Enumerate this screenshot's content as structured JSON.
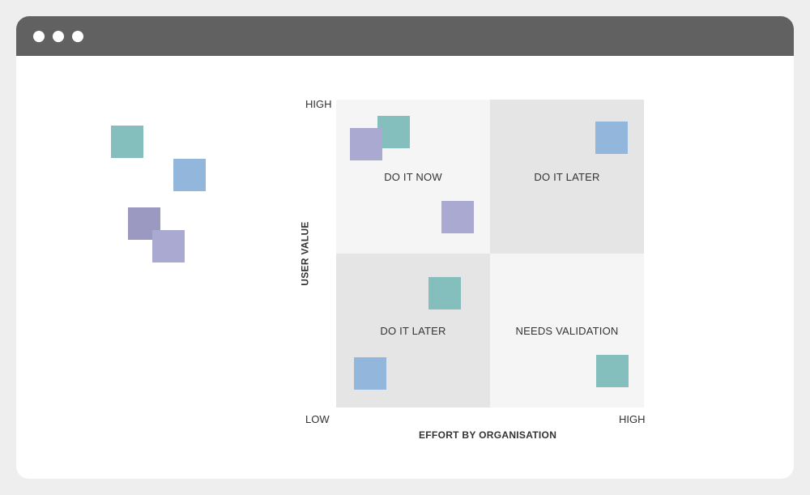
{
  "colors": {
    "teal": "#84bfbd",
    "blue": "#92b6dc",
    "lavender": "#aaa9d2",
    "purple": "#9b99c1",
    "quadrant_light": "#f5f5f5",
    "quadrant_dark": "#e5e5e5",
    "titlebar": "#616161"
  },
  "window": {
    "controls": [
      "window-dot",
      "window-dot",
      "window-dot"
    ]
  },
  "unsorted_notes": [
    {
      "color": "teal"
    },
    {
      "color": "blue"
    },
    {
      "color": "purple"
    },
    {
      "color": "lavender"
    }
  ],
  "matrix": {
    "quadrants": {
      "top_left": "DO IT NOW",
      "top_right": "DO IT LATER",
      "bottom_left": "DO IT LATER",
      "bottom_right": "NEEDS VALIDATION"
    },
    "y_axis": {
      "title": "USER VALUE",
      "high": "HIGH",
      "low": "LOW"
    },
    "x_axis": {
      "title": "EFFORT BY ORGANISATION",
      "high": "HIGH"
    },
    "notes": [
      {
        "color": "teal",
        "quadrant": "DO IT NOW"
      },
      {
        "color": "lavender",
        "quadrant": "DO IT NOW"
      },
      {
        "color": "lavender",
        "quadrant": "DO IT NOW"
      },
      {
        "color": "blue",
        "quadrant": "DO IT LATER"
      },
      {
        "color": "teal",
        "quadrant": "DO IT LATER"
      },
      {
        "color": "blue",
        "quadrant": "DO IT LATER"
      },
      {
        "color": "teal",
        "quadrant": "NEEDS VALIDATION"
      }
    ]
  }
}
